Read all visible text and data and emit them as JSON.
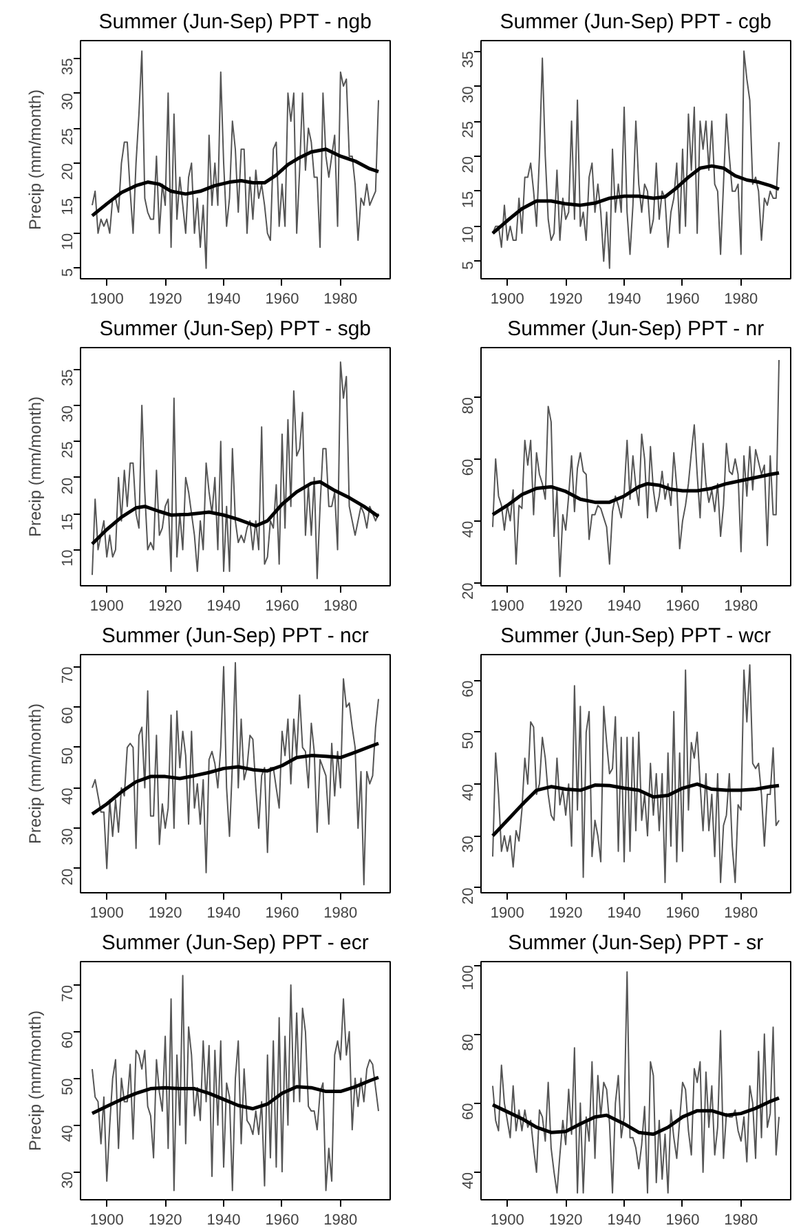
{
  "chart_data": [
    {
      "type": "line",
      "x": [
        1895,
        1896,
        1897,
        1898,
        1899,
        1900,
        1901,
        1902,
        1903,
        1904,
        1905,
        1906,
        1907,
        1908,
        1909,
        1910,
        1911,
        1912,
        1913,
        1914,
        1915,
        1916,
        1917,
        1918,
        1919,
        1920,
        1921,
        1922,
        1923,
        1924,
        1925,
        1926,
        1927,
        1928,
        1929,
        1930,
        1931,
        1932,
        1933,
        1934,
        1935,
        1936,
        1937,
        1938,
        1939,
        1940,
        1941,
        1942,
        1943,
        1944,
        1945,
        1946,
        1947,
        1948,
        1949,
        1950,
        1951,
        1952,
        1953,
        1954,
        1955,
        1956,
        1957,
        1958,
        1959,
        1960,
        1961,
        1962,
        1963,
        1964,
        1965,
        1966,
        1967,
        1968,
        1969,
        1970,
        1971,
        1972,
        1973,
        1974,
        1975,
        1976,
        1977,
        1978,
        1979,
        1980,
        1981,
        1982,
        1983,
        1984,
        1985,
        1986,
        1987,
        1988,
        1989,
        1990,
        1991,
        1992,
        1993
      ],
      "title": "Summer (Jun-Sep) PPT - ngb",
      "ylabel": "Precip (mm/month)",
      "xlim": [
        1891,
        1997
      ],
      "xticks": [
        1900,
        1920,
        1940,
        1960,
        1980
      ],
      "ylim": [
        3.5,
        37.5
      ],
      "yticks": [
        5,
        10,
        15,
        20,
        25,
        30,
        35
      ],
      "grid": false,
      "series": [
        {
          "color": "#555555",
          "values": [
            14,
            16,
            10,
            12,
            11,
            12,
            10,
            15,
            15,
            13,
            20,
            23,
            23,
            16,
            10,
            20,
            27,
            36,
            15,
            13,
            12,
            12,
            21,
            10,
            17,
            14,
            30,
            8,
            27,
            12,
            18,
            14,
            10,
            18,
            20,
            10,
            15,
            8,
            14,
            5,
            24,
            14,
            20,
            14,
            33,
            20,
            11,
            15,
            26,
            22,
            13,
            22,
            22,
            10,
            18,
            12,
            19,
            15,
            17,
            14,
            10,
            9,
            22,
            23,
            11,
            17,
            11,
            30,
            26,
            30,
            10,
            19,
            30,
            19,
            25,
            23,
            18,
            18,
            8,
            30,
            21,
            18,
            21,
            24,
            11,
            33,
            31,
            32,
            21,
            21,
            17,
            9,
            15,
            14,
            17,
            14,
            15,
            16,
            29
          ]
        },
        {
          "color": "#000000",
          "x": [
            1895,
            1900,
            1905,
            1910,
            1914,
            1918,
            1922,
            1927,
            1932,
            1937,
            1942,
            1946,
            1950,
            1954,
            1958,
            1962,
            1966,
            1970,
            1975,
            1980,
            1985,
            1990,
            1993
          ],
          "values": [
            12.5,
            14.2,
            15.8,
            16.8,
            17.3,
            17,
            16,
            15.6,
            16,
            16.8,
            17.3,
            17.5,
            17.2,
            17.2,
            18.3,
            19.8,
            20.8,
            21.6,
            22,
            21,
            20.3,
            19.2,
            18.8
          ]
        }
      ]
    },
    {
      "type": "line",
      "x": [
        1895,
        1896,
        1897,
        1898,
        1899,
        1900,
        1901,
        1902,
        1903,
        1904,
        1905,
        1906,
        1907,
        1908,
        1909,
        1910,
        1911,
        1912,
        1913,
        1914,
        1915,
        1916,
        1917,
        1918,
        1919,
        1920,
        1921,
        1922,
        1923,
        1924,
        1925,
        1926,
        1927,
        1928,
        1929,
        1930,
        1931,
        1932,
        1933,
        1934,
        1935,
        1936,
        1937,
        1938,
        1939,
        1940,
        1941,
        1942,
        1943,
        1944,
        1945,
        1946,
        1947,
        1948,
        1949,
        1950,
        1951,
        1952,
        1953,
        1954,
        1955,
        1956,
        1957,
        1958,
        1959,
        1960,
        1961,
        1962,
        1963,
        1964,
        1965,
        1966,
        1967,
        1968,
        1969,
        1970,
        1971,
        1972,
        1973,
        1974,
        1975,
        1976,
        1977,
        1978,
        1979,
        1980,
        1981,
        1982,
        1983,
        1984,
        1985,
        1986,
        1987,
        1988,
        1989,
        1990,
        1991,
        1992,
        1993
      ],
      "title": "Summer (Jun-Sep) PPT - cgb",
      "xlim": [
        1891,
        1997
      ],
      "xticks": [
        1900,
        1920,
        1940,
        1960,
        1980
      ],
      "ylim": [
        2.5,
        36.5
      ],
      "yticks": [
        5,
        10,
        15,
        20,
        25,
        30,
        35
      ],
      "grid": false,
      "series": [
        {
          "color": "#555555",
          "values": [
            9,
            10,
            10,
            7,
            13,
            8,
            10,
            8,
            8,
            14,
            9,
            17,
            17,
            19,
            15,
            10,
            20,
            34,
            20,
            11,
            8,
            9,
            18,
            8,
            14,
            11,
            12,
            25,
            11,
            28,
            10,
            12,
            8,
            17,
            19,
            12,
            16,
            12,
            5,
            12,
            4,
            21,
            12,
            16,
            12,
            27,
            12,
            6,
            13,
            25,
            16,
            12,
            16,
            15,
            9,
            11,
            19,
            11,
            15,
            14,
            7,
            12,
            14,
            19,
            9,
            21,
            10,
            26,
            18,
            27,
            9,
            25,
            21,
            25,
            18,
            25,
            16,
            15,
            6,
            16,
            26,
            20,
            15,
            15,
            16,
            6,
            35,
            31,
            28,
            16,
            17,
            15,
            8,
            14,
            13,
            15,
            14,
            14,
            22
          ]
        },
        {
          "color": "#000000",
          "x": [
            1895,
            1900,
            1905,
            1910,
            1915,
            1920,
            1925,
            1930,
            1935,
            1940,
            1945,
            1950,
            1954,
            1958,
            1962,
            1966,
            1970,
            1974,
            1978,
            1982,
            1986,
            1990,
            1993
          ],
          "values": [
            9,
            10.8,
            12.5,
            13.6,
            13.6,
            13.2,
            13,
            13.3,
            14,
            14.3,
            14.3,
            14,
            14.2,
            15.5,
            17,
            18.3,
            18.6,
            18.3,
            17.2,
            16.6,
            16.3,
            15.8,
            15.3
          ]
        }
      ]
    },
    {
      "type": "line",
      "x": [
        1895,
        1896,
        1897,
        1898,
        1899,
        1900,
        1901,
        1902,
        1903,
        1904,
        1905,
        1906,
        1907,
        1908,
        1909,
        1910,
        1911,
        1912,
        1913,
        1914,
        1915,
        1916,
        1917,
        1918,
        1919,
        1920,
        1921,
        1922,
        1923,
        1924,
        1925,
        1926,
        1927,
        1928,
        1929,
        1930,
        1931,
        1932,
        1933,
        1934,
        1935,
        1936,
        1937,
        1938,
        1939,
        1940,
        1941,
        1942,
        1943,
        1944,
        1945,
        1946,
        1947,
        1948,
        1949,
        1950,
        1951,
        1952,
        1953,
        1954,
        1955,
        1956,
        1957,
        1958,
        1959,
        1960,
        1961,
        1962,
        1963,
        1964,
        1965,
        1966,
        1967,
        1968,
        1969,
        1970,
        1971,
        1972,
        1973,
        1974,
        1975,
        1976,
        1977,
        1978,
        1979,
        1980,
        1981,
        1982,
        1983,
        1984,
        1985,
        1986,
        1987,
        1988,
        1989,
        1990,
        1991,
        1992,
        1993
      ],
      "title": "Summer (Jun-Sep) PPT - sgb",
      "ylabel": "Precip (mm/month)",
      "xlim": [
        1891,
        1997
      ],
      "xticks": [
        1900,
        1920,
        1940,
        1960,
        1980
      ],
      "ylim": [
        5,
        38
      ],
      "yticks": [
        10,
        15,
        20,
        25,
        30,
        35
      ],
      "grid": false,
      "series": [
        {
          "color": "#555555",
          "values": [
            6.5,
            17,
            10,
            12,
            14,
            9,
            12,
            9,
            10,
            20,
            14,
            21,
            16,
            22,
            22,
            15,
            13,
            30,
            18,
            10,
            11,
            10,
            21,
            12,
            13,
            16,
            17,
            7,
            31,
            9,
            15,
            10,
            20,
            18,
            15,
            12,
            7,
            14,
            10,
            22,
            18,
            15,
            20,
            10,
            25,
            7,
            16,
            7,
            24,
            14,
            11,
            12,
            11,
            13,
            14,
            10,
            14,
            10,
            27,
            8,
            9,
            14,
            13,
            19,
            8,
            26,
            13,
            28,
            16,
            32,
            23,
            24,
            29,
            12,
            19,
            12,
            20,
            6,
            16,
            24,
            24,
            16,
            16,
            18,
            10,
            36,
            31,
            34,
            16,
            14,
            12,
            14,
            16,
            15,
            13,
            16,
            15,
            14,
            15
          ]
        },
        {
          "color": "#000000",
          "x": [
            1895,
            1900,
            1905,
            1910,
            1913,
            1918,
            1922,
            1928,
            1935,
            1940,
            1945,
            1951,
            1955,
            1960,
            1965,
            1970,
            1973,
            1978,
            1983,
            1988,
            1993
          ],
          "values": [
            10.8,
            12.8,
            14.5,
            15.8,
            16,
            15.3,
            14.8,
            14.9,
            15.2,
            14.8,
            14.2,
            13.3,
            14,
            16.3,
            18,
            19.2,
            19.4,
            18.2,
            17.2,
            16,
            14.6
          ]
        }
      ]
    },
    {
      "type": "line",
      "x": [
        1895,
        1896,
        1897,
        1898,
        1899,
        1900,
        1901,
        1902,
        1903,
        1904,
        1905,
        1906,
        1907,
        1908,
        1909,
        1910,
        1911,
        1912,
        1913,
        1914,
        1915,
        1916,
        1917,
        1918,
        1919,
        1920,
        1921,
        1922,
        1923,
        1924,
        1925,
        1926,
        1927,
        1928,
        1929,
        1930,
        1931,
        1932,
        1933,
        1934,
        1935,
        1936,
        1937,
        1938,
        1939,
        1940,
        1941,
        1942,
        1943,
        1944,
        1945,
        1946,
        1947,
        1948,
        1949,
        1950,
        1951,
        1952,
        1953,
        1954,
        1955,
        1956,
        1957,
        1958,
        1959,
        1960,
        1961,
        1962,
        1963,
        1964,
        1965,
        1966,
        1967,
        1968,
        1969,
        1970,
        1971,
        1972,
        1973,
        1974,
        1975,
        1976,
        1977,
        1978,
        1979,
        1980,
        1981,
        1982,
        1983,
        1984,
        1985,
        1986,
        1987,
        1988,
        1989,
        1990,
        1991,
        1992,
        1993
      ],
      "title": "Summer (Jun-Sep) PPT - nr",
      "xlim": [
        1891,
        1997
      ],
      "xticks": [
        1900,
        1920,
        1940,
        1960,
        1980
      ],
      "ylim": [
        19,
        96
      ],
      "yticks": [
        20,
        40,
        60,
        80
      ],
      "grid": false,
      "series": [
        {
          "color": "#555555",
          "values": [
            38,
            60,
            48,
            45,
            37,
            45,
            40,
            50,
            26,
            45,
            44,
            66,
            58,
            66,
            42,
            62,
            55,
            52,
            47,
            77,
            72,
            35,
            50,
            22,
            42,
            37,
            48,
            61,
            43,
            57,
            62,
            56,
            55,
            34,
            42,
            42,
            45,
            44,
            41,
            38,
            26,
            43,
            48,
            45,
            41,
            49,
            66,
            47,
            61,
            51,
            45,
            68,
            60,
            41,
            64,
            50,
            43,
            48,
            56,
            47,
            52,
            45,
            62,
            51,
            31,
            40,
            45,
            52,
            62,
            71,
            55,
            41,
            65,
            52,
            46,
            50,
            43,
            52,
            35,
            45,
            65,
            56,
            55,
            60,
            55,
            30,
            61,
            48,
            64,
            50,
            63,
            59,
            55,
            58,
            32,
            61,
            42,
            42,
            92
          ]
        },
        {
          "color": "#000000",
          "x": [
            1895,
            1900,
            1905,
            1910,
            1915,
            1920,
            1925,
            1930,
            1935,
            1940,
            1945,
            1948,
            1952,
            1956,
            1960,
            1965,
            1970,
            1975,
            1980,
            1985,
            1990,
            1993
          ],
          "values": [
            42,
            45,
            48.5,
            50.5,
            51,
            49.5,
            47,
            46,
            46,
            48,
            51,
            52,
            51.5,
            50.2,
            49.7,
            49.7,
            50.5,
            52,
            53,
            54,
            55,
            55.5
          ]
        }
      ]
    },
    {
      "type": "line",
      "x": [
        1895,
        1896,
        1897,
        1898,
        1899,
        1900,
        1901,
        1902,
        1903,
        1904,
        1905,
        1906,
        1907,
        1908,
        1909,
        1910,
        1911,
        1912,
        1913,
        1914,
        1915,
        1916,
        1917,
        1918,
        1919,
        1920,
        1921,
        1922,
        1923,
        1924,
        1925,
        1926,
        1927,
        1928,
        1929,
        1930,
        1931,
        1932,
        1933,
        1934,
        1935,
        1936,
        1937,
        1938,
        1939,
        1940,
        1941,
        1942,
        1943,
        1944,
        1945,
        1946,
        1947,
        1948,
        1949,
        1950,
        1951,
        1952,
        1953,
        1954,
        1955,
        1956,
        1957,
        1958,
        1959,
        1960,
        1961,
        1962,
        1963,
        1964,
        1965,
        1966,
        1967,
        1968,
        1969,
        1970,
        1971,
        1972,
        1973,
        1974,
        1975,
        1976,
        1977,
        1978,
        1979,
        1980,
        1981,
        1982,
        1983,
        1984,
        1985,
        1986,
        1987,
        1988,
        1989,
        1990,
        1991,
        1992,
        1993
      ],
      "title": "Summer (Jun-Sep) PPT - ncr",
      "ylabel": "Precip (mm/month)",
      "xlim": [
        1891,
        1997
      ],
      "xticks": [
        1900,
        1920,
        1940,
        1960,
        1980
      ],
      "ylim": [
        14,
        73
      ],
      "yticks": [
        20,
        30,
        40,
        50,
        60,
        70
      ],
      "grid": false,
      "series": [
        {
          "color": "#555555",
          "values": [
            40,
            42,
            38,
            34,
            34,
            20,
            37,
            28,
            37,
            29,
            40,
            38,
            50,
            51,
            50,
            25,
            53,
            55,
            40,
            64,
            33,
            33,
            53,
            26,
            36,
            30,
            35,
            58,
            30,
            59,
            45,
            54,
            48,
            31,
            54,
            35,
            41,
            31,
            42,
            19,
            47,
            49,
            46,
            40,
            50,
            70,
            40,
            28,
            46,
            71,
            40,
            57,
            42,
            45,
            53,
            52,
            40,
            30,
            43,
            45,
            24,
            45,
            45,
            40,
            35,
            54,
            48,
            57,
            41,
            57,
            48,
            63,
            50,
            49,
            40,
            56,
            49,
            29,
            47,
            45,
            43,
            31,
            51,
            38,
            49,
            40,
            67,
            60,
            61,
            55,
            50,
            30,
            44,
            16,
            44,
            41,
            43,
            55,
            62
          ]
        },
        {
          "color": "#000000",
          "x": [
            1895,
            1900,
            1905,
            1910,
            1915,
            1920,
            1925,
            1930,
            1935,
            1940,
            1945,
            1950,
            1955,
            1960,
            1965,
            1970,
            1975,
            1980,
            1985,
            1990,
            1993
          ],
          "values": [
            33.5,
            36,
            39,
            41.5,
            42.8,
            42.8,
            42.3,
            43,
            43.8,
            44.8,
            45.2,
            44.5,
            44.2,
            45.5,
            47.5,
            48,
            47.8,
            47.5,
            48.8,
            50.2,
            51
          ]
        }
      ]
    },
    {
      "type": "line",
      "x": [
        1895,
        1896,
        1897,
        1898,
        1899,
        1900,
        1901,
        1902,
        1903,
        1904,
        1905,
        1906,
        1907,
        1908,
        1909,
        1910,
        1911,
        1912,
        1913,
        1914,
        1915,
        1916,
        1917,
        1918,
        1919,
        1920,
        1921,
        1922,
        1923,
        1924,
        1925,
        1926,
        1927,
        1928,
        1929,
        1930,
        1931,
        1932,
        1933,
        1934,
        1935,
        1936,
        1937,
        1938,
        1939,
        1940,
        1941,
        1942,
        1943,
        1944,
        1945,
        1946,
        1947,
        1948,
        1949,
        1950,
        1951,
        1952,
        1953,
        1954,
        1955,
        1956,
        1957,
        1958,
        1959,
        1960,
        1961,
        1962,
        1963,
        1964,
        1965,
        1966,
        1967,
        1968,
        1969,
        1970,
        1971,
        1972,
        1973,
        1974,
        1975,
        1976,
        1977,
        1978,
        1979,
        1980,
        1981,
        1982,
        1983,
        1984,
        1985,
        1986,
        1987,
        1988,
        1989,
        1990,
        1991,
        1992,
        1993
      ],
      "title": "Summer (Jun-Sep) PPT - wcr",
      "xlim": [
        1891,
        1997
      ],
      "xticks": [
        1900,
        1920,
        1940,
        1960,
        1980
      ],
      "ylim": [
        19,
        65
      ],
      "yticks": [
        20,
        30,
        40,
        50,
        60
      ],
      "grid": false,
      "series": [
        {
          "color": "#555555",
          "values": [
            26,
            46,
            38,
            27,
            30,
            27,
            30,
            24,
            31,
            29,
            35,
            45,
            40,
            52,
            51,
            38,
            40,
            49,
            45,
            38,
            34,
            33,
            45,
            36,
            39,
            34,
            40,
            28,
            59,
            35,
            55,
            22,
            50,
            54,
            26,
            33,
            30,
            25,
            55,
            48,
            42,
            43,
            53,
            27,
            49,
            25,
            49,
            27,
            49,
            31,
            50,
            33,
            38,
            30,
            44,
            34,
            42,
            31,
            42,
            21,
            46,
            28,
            54,
            25,
            46,
            27,
            62,
            35,
            48,
            45,
            50,
            40,
            31,
            42,
            31,
            38,
            26,
            42,
            21,
            32,
            34,
            42,
            28,
            21,
            36,
            35,
            62,
            52,
            63,
            44,
            43,
            44,
            38,
            28,
            38,
            38,
            47,
            32,
            33
          ]
        },
        {
          "color": "#000000",
          "x": [
            1895,
            1900,
            1905,
            1910,
            1915,
            1920,
            1925,
            1930,
            1935,
            1940,
            1945,
            1950,
            1955,
            1960,
            1965,
            1970,
            1975,
            1980,
            1985,
            1990,
            1993
          ],
          "values": [
            30,
            33,
            36,
            38.8,
            39.5,
            39,
            38.8,
            39.8,
            39.7,
            39.2,
            38.8,
            37.5,
            37.8,
            39.2,
            40,
            39,
            38.8,
            38.8,
            39,
            39.5,
            39.7
          ]
        }
      ]
    },
    {
      "type": "line",
      "x": [
        1895,
        1896,
        1897,
        1898,
        1899,
        1900,
        1901,
        1902,
        1903,
        1904,
        1905,
        1906,
        1907,
        1908,
        1909,
        1910,
        1911,
        1912,
        1913,
        1914,
        1915,
        1916,
        1917,
        1918,
        1919,
        1920,
        1921,
        1922,
        1923,
        1924,
        1925,
        1926,
        1927,
        1928,
        1929,
        1930,
        1931,
        1932,
        1933,
        1934,
        1935,
        1936,
        1937,
        1938,
        1939,
        1940,
        1941,
        1942,
        1943,
        1944,
        1945,
        1946,
        1947,
        1948,
        1949,
        1950,
        1951,
        1952,
        1953,
        1954,
        1955,
        1956,
        1957,
        1958,
        1959,
        1960,
        1961,
        1962,
        1963,
        1964,
        1965,
        1966,
        1967,
        1968,
        1969,
        1970,
        1971,
        1972,
        1973,
        1974,
        1975,
        1976,
        1977,
        1978,
        1979,
        1980,
        1981,
        1982,
        1983,
        1984,
        1985,
        1986,
        1987,
        1988,
        1989,
        1990,
        1991,
        1992,
        1993
      ],
      "title": "Summer (Jun-Sep) PPT - ecr",
      "ylabel": "Precip (mm/month)",
      "xlim": [
        1891,
        1997
      ],
      "xticks": [
        1900,
        1920,
        1940,
        1960,
        1980
      ],
      "ylim": [
        24,
        75
      ],
      "yticks": [
        30,
        40,
        50,
        60,
        70
      ],
      "grid": false,
      "series": [
        {
          "color": "#555555",
          "values": [
            52,
            46,
            45,
            36,
            46,
            28,
            40,
            50,
            54,
            35,
            50,
            45,
            45,
            53,
            37,
            56,
            55,
            52,
            56,
            44,
            42,
            33,
            54,
            47,
            43,
            59,
            35,
            67,
            26,
            55,
            40,
            72,
            36,
            61,
            55,
            42,
            48,
            41,
            58,
            45,
            57,
            29,
            56,
            40,
            58,
            31,
            49,
            46,
            26,
            50,
            58,
            36,
            52,
            41,
            40,
            38,
            43,
            38,
            45,
            27,
            55,
            33,
            58,
            31,
            63,
            30,
            59,
            40,
            70,
            45,
            64,
            45,
            65,
            60,
            44,
            43,
            43,
            39,
            47,
            49,
            26,
            35,
            28,
            55,
            58,
            54,
            67,
            55,
            60,
            39,
            50,
            44,
            50,
            45,
            52,
            54,
            53,
            48,
            43
          ]
        },
        {
          "color": "#000000",
          "x": [
            1895,
            1900,
            1905,
            1910,
            1915,
            1920,
            1925,
            1930,
            1935,
            1940,
            1945,
            1950,
            1955,
            1960,
            1965,
            1970,
            1975,
            1980,
            1985,
            1990,
            1993
          ],
          "values": [
            42.5,
            44,
            45.5,
            46.8,
            47.8,
            48,
            47.8,
            47.8,
            46.8,
            45.5,
            44.2,
            43.5,
            44.5,
            46.8,
            48.2,
            48,
            47.2,
            47.2,
            48.2,
            49.5,
            50.2
          ]
        }
      ]
    },
    {
      "type": "line",
      "x": [
        1895,
        1896,
        1897,
        1898,
        1899,
        1900,
        1901,
        1902,
        1903,
        1904,
        1905,
        1906,
        1907,
        1908,
        1909,
        1910,
        1911,
        1912,
        1913,
        1914,
        1915,
        1916,
        1917,
        1918,
        1919,
        1920,
        1921,
        1922,
        1923,
        1924,
        1925,
        1926,
        1927,
        1928,
        1929,
        1930,
        1931,
        1932,
        1933,
        1934,
        1935,
        1936,
        1937,
        1938,
        1939,
        1940,
        1941,
        1942,
        1943,
        1944,
        1945,
        1946,
        1947,
        1948,
        1949,
        1950,
        1951,
        1952,
        1953,
        1954,
        1955,
        1956,
        1957,
        1958,
        1959,
        1960,
        1961,
        1962,
        1963,
        1964,
        1965,
        1966,
        1967,
        1968,
        1969,
        1970,
        1971,
        1972,
        1973,
        1974,
        1975,
        1976,
        1977,
        1978,
        1979,
        1980,
        1981,
        1982,
        1983,
        1984,
        1985,
        1986,
        1987,
        1988,
        1989,
        1990,
        1991,
        1992,
        1993
      ],
      "title": "Summer (Jun-Sep) PPT - sr",
      "xlim": [
        1891,
        1997
      ],
      "xticks": [
        1900,
        1920,
        1940,
        1960,
        1980
      ],
      "ylim": [
        32,
        101
      ],
      "yticks": [
        40,
        60,
        80,
        100
      ],
      "grid": false,
      "series": [
        {
          "color": "#555555",
          "values": [
            65,
            55,
            52,
            71,
            60,
            55,
            50,
            65,
            52,
            58,
            52,
            58,
            53,
            55,
            47,
            40,
            58,
            56,
            49,
            66,
            47,
            40,
            34,
            45,
            55,
            48,
            64,
            51,
            76,
            34,
            60,
            34,
            56,
            49,
            72,
            44,
            68,
            56,
            66,
            64,
            54,
            34,
            60,
            68,
            50,
            56,
            98,
            50,
            50,
            47,
            41,
            48,
            59,
            34,
            72,
            68,
            37,
            55,
            38,
            51,
            34,
            58,
            50,
            44,
            55,
            66,
            64,
            52,
            45,
            70,
            66,
            72,
            40,
            69,
            53,
            65,
            45,
            53,
            81,
            44,
            57,
            56,
            56,
            58,
            52,
            49,
            56,
            43,
            65,
            60,
            44,
            75,
            50,
            80,
            53,
            57,
            82,
            45,
            56
          ]
        },
        {
          "color": "#000000",
          "x": [
            1895,
            1900,
            1905,
            1910,
            1915,
            1920,
            1925,
            1930,
            1934,
            1940,
            1945,
            1950,
            1955,
            1960,
            1965,
            1970,
            1975,
            1980,
            1985,
            1990,
            1993
          ],
          "values": [
            59.5,
            57.5,
            55.5,
            53,
            51.5,
            51.8,
            54,
            56,
            56.5,
            54,
            51.5,
            51,
            53,
            56,
            57.8,
            57.8,
            56.5,
            57,
            58.5,
            60.5,
            61.5
          ]
        }
      ]
    }
  ]
}
